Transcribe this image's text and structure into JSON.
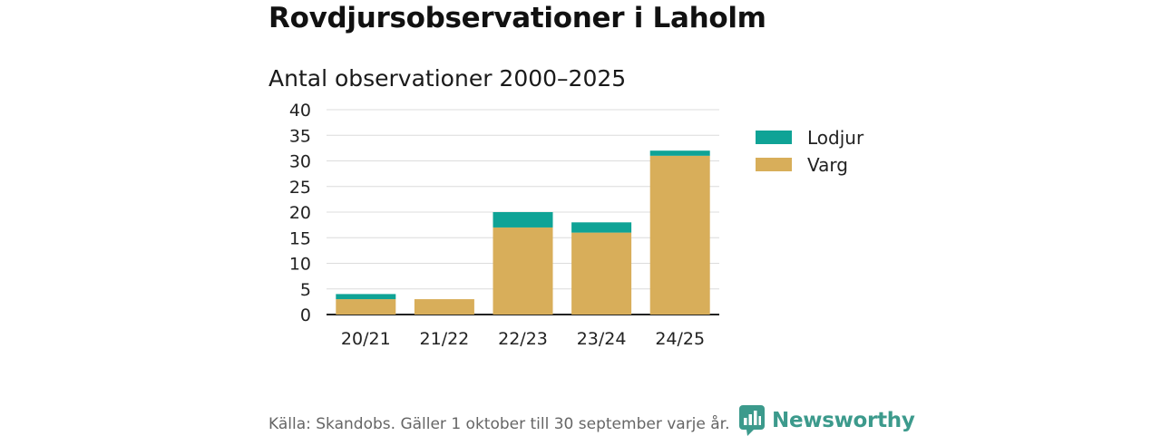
{
  "header": {
    "title": "Rovdjursobservationer i Laholm",
    "subtitle": "Antal observationer 2000–2025"
  },
  "chart_data": {
    "type": "bar",
    "stacked": true,
    "title": "Rovdjursobservationer i Laholm",
    "subtitle": "Antal observationer 2000–2025",
    "xlabel": "",
    "ylabel": "",
    "categories": [
      "20/21",
      "21/22",
      "22/23",
      "23/24",
      "24/25"
    ],
    "series": [
      {
        "name": "Varg",
        "color": "#d8ae5a",
        "values": [
          3,
          3,
          17,
          16,
          31
        ]
      },
      {
        "name": "Lodjur",
        "color": "#0fa396",
        "values": [
          1,
          0,
          3,
          2,
          1
        ]
      }
    ],
    "legend_order": [
      "Lodjur",
      "Varg"
    ],
    "ylim": [
      0,
      40
    ],
    "yticks": [
      0,
      5,
      10,
      15,
      20,
      25,
      30,
      35,
      40
    ],
    "yticks_labels": [
      "0",
      "5",
      "10",
      "15",
      "20",
      "25",
      "30",
      "35",
      "40"
    ],
    "grid": true,
    "legend_position": "right"
  },
  "footer": {
    "source": "Källa: Skandobs. Gäller 1 oktober till 30 september varje år.",
    "brand": "Newsworthy",
    "brand_color": "#3c9a8c"
  }
}
